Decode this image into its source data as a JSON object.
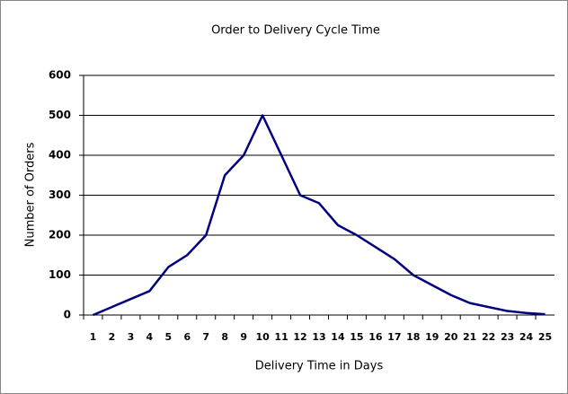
{
  "chart_data": {
    "type": "line",
    "title": "Order to Delivery Cycle Time",
    "x_label": "Delivery Time in Days",
    "y_label": "Number of Orders",
    "categories": [
      "1",
      "2",
      "3",
      "4",
      "5",
      "6",
      "7",
      "8",
      "9",
      "10",
      "11",
      "12",
      "13",
      "14",
      "15",
      "16",
      "17",
      "18",
      "19",
      "20",
      "21",
      "22",
      "23",
      "24",
      "25"
    ],
    "series": [
      {
        "name": "Orders",
        "color": "#000080",
        "values": [
          0,
          20,
          40,
          60,
          120,
          150,
          200,
          350,
          400,
          500,
          400,
          300,
          280,
          225,
          200,
          170,
          140,
          100,
          75,
          50,
          30,
          20,
          10,
          5,
          2
        ]
      }
    ],
    "ylim": [
      0,
      600
    ],
    "yticks": [
      0,
      100,
      200,
      300,
      400,
      500,
      600
    ],
    "grid": true
  }
}
